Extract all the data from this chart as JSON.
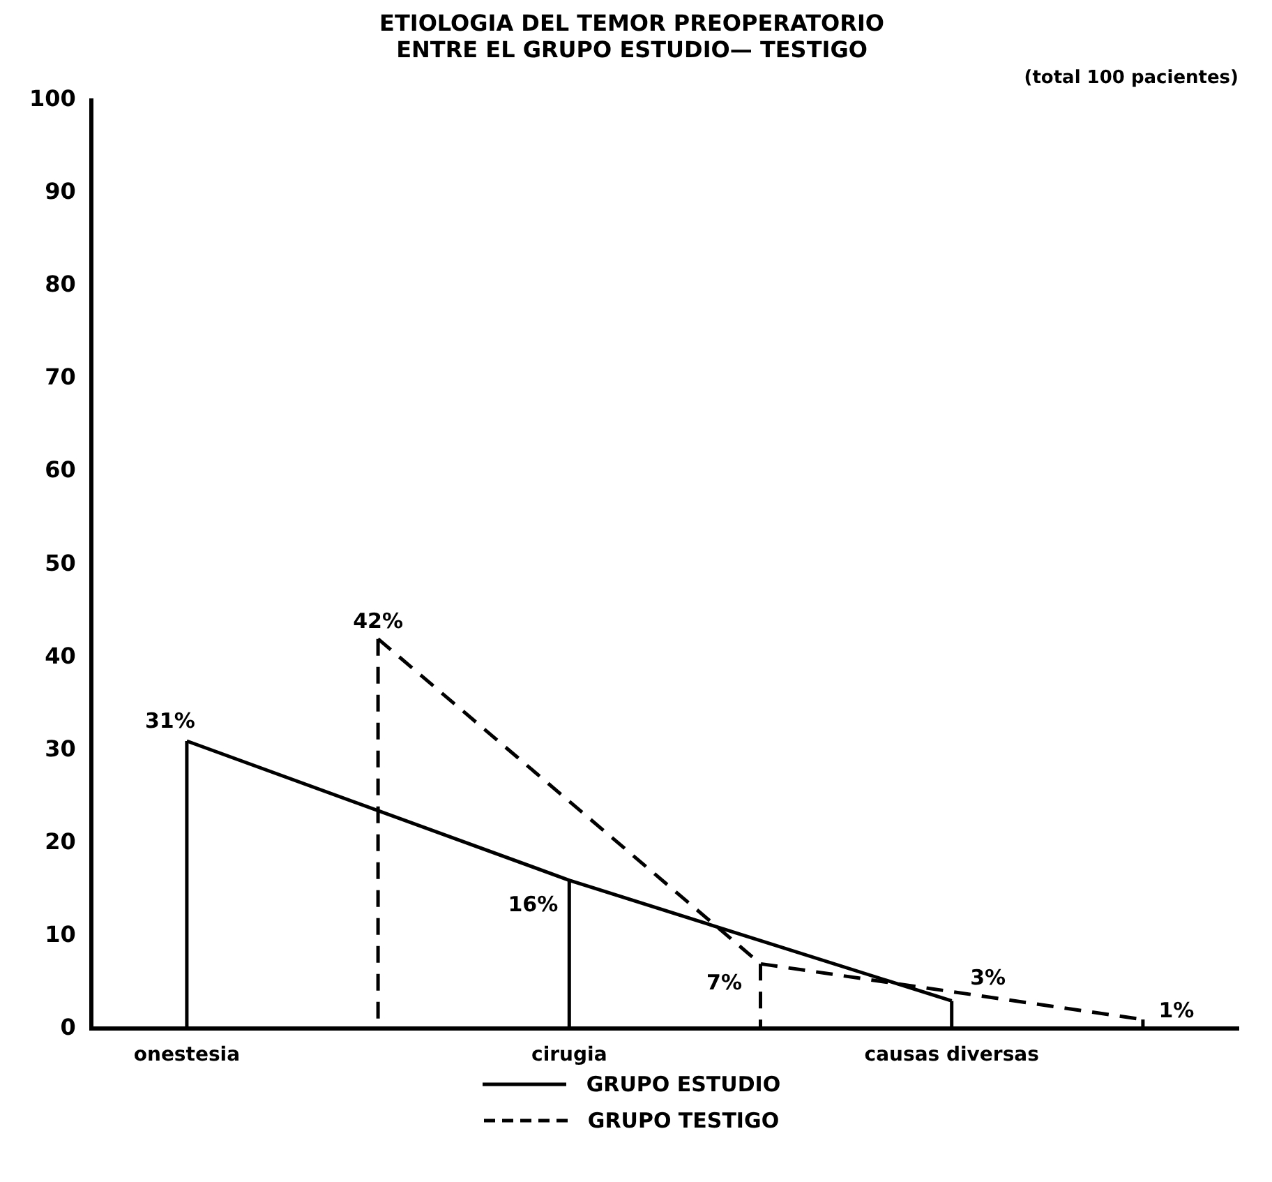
{
  "chart_data": {
    "type": "line",
    "title": [
      "ETIOLOGIA DEL TEMOR PREOPERATORIO",
      "ENTRE EL GRUPO ESTUDIO— TESTIGO"
    ],
    "subtitle": "(total 100 pacientes)",
    "categories": [
      "onestesia",
      null,
      "cirugia",
      null,
      "causas diversas",
      null
    ],
    "series": [
      {
        "name": "GRUPO ESTUDIO",
        "color": "#000000",
        "line_style": "solid",
        "values": [
          31,
          null,
          16,
          null,
          3,
          null
        ],
        "value_labels": [
          "31%",
          null,
          "16%",
          null,
          "3%",
          null
        ]
      },
      {
        "name": "GRUPO TESTIGO",
        "color": "#000000",
        "line_style": "dashed",
        "values": [
          null,
          42,
          null,
          7,
          null,
          1
        ],
        "value_labels": [
          null,
          "42%",
          null,
          "7%",
          null,
          "1%"
        ]
      }
    ],
    "ylim": [
      0,
      100
    ],
    "yticks": [
      0,
      10,
      20,
      30,
      40,
      50,
      60,
      70,
      80,
      90,
      100
    ],
    "grid": false,
    "legend": "bottom",
    "marker": "none"
  }
}
